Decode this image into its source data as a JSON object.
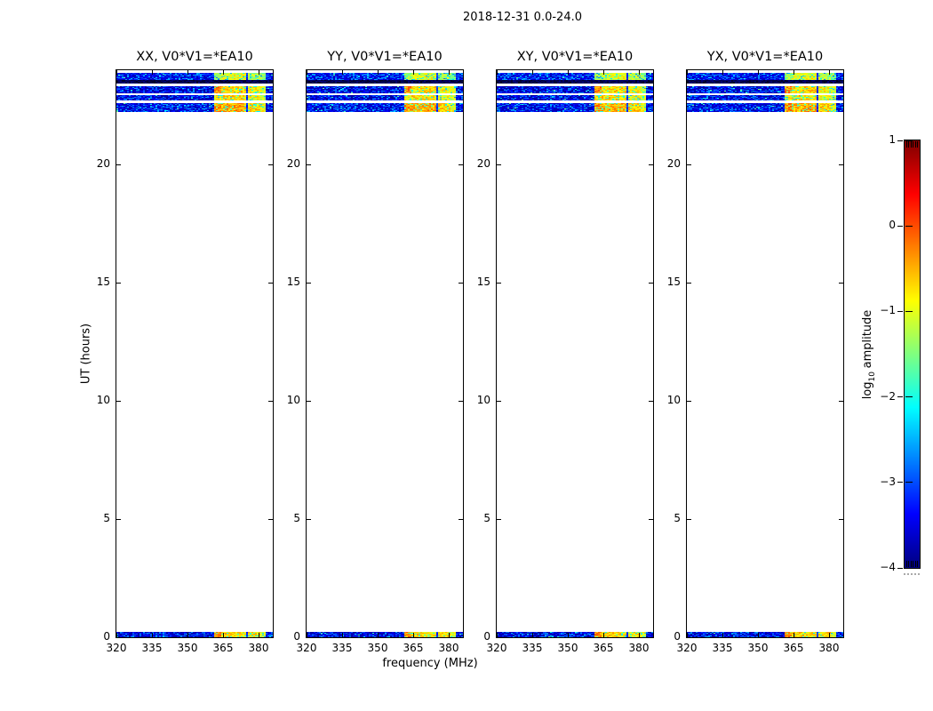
{
  "figure": {
    "title": "2018-12-31 0.0-24.0",
    "background": "#ffffff",
    "axis_color": "#000000"
  },
  "chart_data": {
    "type": "heatmap",
    "title": "2018-12-31 0.0-24.0",
    "xlabel": "frequency (MHz)",
    "ylabel": "UT (hours)",
    "x_range": [
      320,
      386
    ],
    "y_range": [
      0,
      24
    ],
    "x_ticks": [
      320,
      335,
      350,
      365,
      380
    ],
    "y_ticks": [
      0,
      5,
      10,
      15,
      20
    ],
    "grid": false,
    "panels": [
      {
        "title": "XX, V0*V1=*EA10"
      },
      {
        "title": "YY, V0*V1=*EA10"
      },
      {
        "title": "XY, V0*V1=*EA10"
      },
      {
        "title": "YX, V0*V1=*EA10"
      }
    ],
    "colormap": "jet",
    "value_range": [
      -4,
      1
    ],
    "noise_floor": -3.7,
    "rfi_chunks_mhz": [
      [
        361.2,
        363.5
      ],
      [
        363.9,
        369.0
      ],
      [
        369.4,
        374.6
      ],
      [
        375.0,
        380.2
      ],
      [
        380.6,
        382.5
      ]
    ],
    "scans": [
      {
        "ut": [
          23.62,
          23.85
        ],
        "kind": "bright",
        "noise_bias": -3.45,
        "chunk_bias": [
          -1.4,
          -1.1,
          -1.0,
          -1.3,
          -1.5
        ]
      },
      {
        "ut": [
          23.45,
          23.57
        ],
        "kind": "dark",
        "noise_bias": -4.0,
        "chunk_bias": [
          -4,
          -4,
          -4,
          -4,
          -4
        ]
      },
      {
        "ut": [
          23.04,
          23.32
        ],
        "kind": "bright",
        "noise_bias": -3.6,
        "chunk_bias": [
          -0.35,
          -0.8,
          -0.7,
          -0.9,
          -1.1
        ]
      },
      {
        "ut": [
          22.74,
          22.93
        ],
        "kind": "bright",
        "noise_bias": -3.6,
        "chunk_bias": [
          -0.9,
          -0.75,
          -0.8,
          -0.95,
          -1.2
        ]
      },
      {
        "ut": [
          22.25,
          22.58
        ],
        "kind": "bright",
        "noise_bias": -3.5,
        "chunk_bias": [
          -0.4,
          -0.55,
          -0.5,
          -0.7,
          -1.0
        ]
      },
      {
        "ut": [
          0.0,
          0.2
        ],
        "kind": "bright",
        "noise_bias": -3.6,
        "chunk_bias": [
          -0.35,
          -0.7,
          -0.8,
          -0.75,
          -1.1
        ]
      }
    ],
    "colorbar": {
      "label_prefix": "log",
      "label_sub": "10",
      "label_suffix": "amplitude",
      "ticks": [
        1,
        0,
        -1,
        -2,
        -3,
        -4
      ],
      "range": [
        -4,
        1
      ],
      "position": "right"
    }
  }
}
